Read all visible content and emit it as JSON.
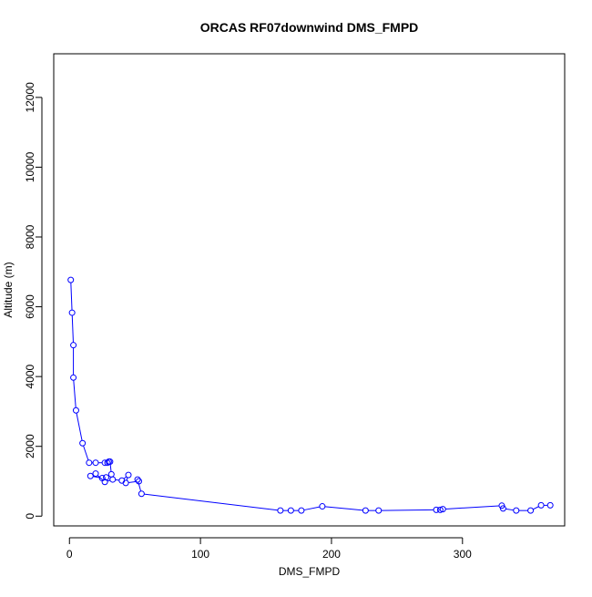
{
  "chart_data": {
    "type": "line",
    "title": "ORCAS RF07downwind DMS_FMPD",
    "xlabel": "DMS_FMPD",
    "ylabel": "Altitude (m)",
    "xlim": [
      -12,
      378
    ],
    "ylim": [
      -280,
      13250
    ],
    "x_ticks": [
      0,
      100,
      200,
      300
    ],
    "x_tick_labels": [
      "0",
      "100",
      "200",
      "300"
    ],
    "y_ticks": [
      0,
      2000,
      4000,
      6000,
      8000,
      10000,
      12000
    ],
    "y_tick_labels": [
      "0",
      "2000",
      "4000",
      "6000",
      "8000",
      "10000",
      "12000"
    ],
    "grid": false,
    "series": [
      {
        "color": "#0000ff",
        "marker": "open-circle",
        "x": [
          1,
          2,
          3,
          3,
          5,
          10,
          15,
          20,
          27,
          29,
          30,
          31,
          32,
          28,
          25,
          16,
          20,
          27,
          33,
          40,
          45,
          43,
          53,
          52,
          55,
          161,
          169,
          177,
          193,
          226,
          236,
          280,
          283,
          285,
          330,
          331,
          341,
          352,
          360,
          367
        ],
        "y": [
          6770,
          5830,
          4900,
          3970,
          3030,
          2090,
          1530,
          1530,
          1530,
          1530,
          1560,
          1560,
          1200,
          1110,
          1090,
          1150,
          1220,
          980,
          1050,
          1020,
          1180,
          950,
          1000,
          1050,
          640,
          160,
          160,
          160,
          280,
          160,
          160,
          180,
          180,
          200,
          300,
          220,
          160,
          160,
          310,
          310
        ]
      }
    ]
  }
}
